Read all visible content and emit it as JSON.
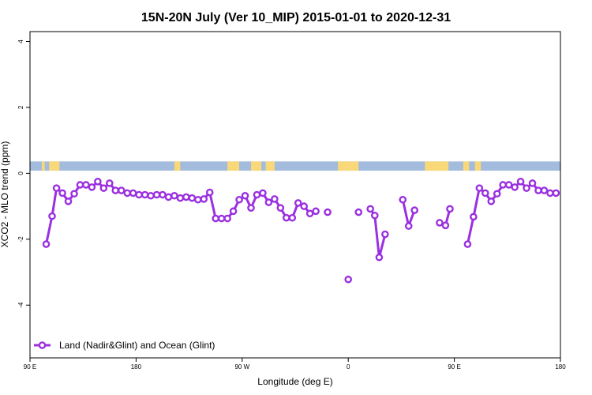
{
  "chart_data": {
    "type": "line",
    "title": "15N-20N July (Ver 10_MIP)   2015-01-01 to 2020-12-31",
    "xlabel": "Longitude (deg E)",
    "ylabel": "XCO2 - MLO trend (ppm)",
    "xlim": [
      90,
      450
    ],
    "ylim": [
      -5.6,
      4.3
    ],
    "xticks": [
      90,
      162,
      234,
      306,
      378,
      450
    ],
    "xtick_labels": [
      "90 E",
      "180",
      "90 W",
      "0",
      "90 E",
      "180"
    ],
    "yticks": [
      -4,
      -2,
      0,
      2,
      4
    ],
    "ytick_labels": [
      "-4",
      "-2",
      "0",
      "2",
      "4"
    ],
    "grid": false,
    "legend_position": "bottom-left",
    "land_mask_band": {
      "y_range": [
        0.08,
        0.36
      ],
      "ocean_color": "#a3bbdd",
      "land_color": "#f8d878",
      "land_x_spans": [
        [
          98,
          100
        ],
        [
          103,
          110
        ],
        [
          188,
          192
        ],
        [
          224,
          232
        ],
        [
          240,
          247
        ],
        [
          250,
          256
        ],
        [
          299,
          313
        ],
        [
          358,
          374
        ],
        [
          384,
          388
        ],
        [
          392,
          396
        ]
      ]
    },
    "series": [
      {
        "name": "Land (Nadir&Glint) and Ocean (Glint)",
        "color": "#9b30e0",
        "segments": [
          [
            [
              101,
              -2.15
            ],
            [
              105,
              -1.3
            ],
            [
              108,
              -0.45
            ],
            [
              112,
              -0.6
            ],
            [
              116,
              -0.85
            ],
            [
              120,
              -0.62
            ],
            [
              124,
              -0.35
            ],
            [
              128,
              -0.35
            ],
            [
              132,
              -0.42
            ],
            [
              136,
              -0.25
            ],
            [
              140,
              -0.45
            ],
            [
              144,
              -0.3
            ],
            [
              148,
              -0.52
            ],
            [
              152,
              -0.52
            ],
            [
              156,
              -0.6
            ],
            [
              160,
              -0.6
            ],
            [
              164,
              -0.65
            ],
            [
              168,
              -0.65
            ],
            [
              172,
              -0.68
            ],
            [
              176,
              -0.65
            ],
            [
              180,
              -0.65
            ],
            [
              184,
              -0.72
            ],
            [
              188,
              -0.68
            ],
            [
              192,
              -0.75
            ],
            [
              196,
              -0.72
            ],
            [
              200,
              -0.75
            ],
            [
              204,
              -0.8
            ],
            [
              208,
              -0.78
            ],
            [
              212,
              -0.58
            ],
            [
              216,
              -1.37
            ],
            [
              220,
              -1.37
            ],
            [
              224,
              -1.37
            ],
            [
              228,
              -1.15
            ],
            [
              232,
              -0.8
            ],
            [
              236,
              -0.68
            ],
            [
              240,
              -1.05
            ],
            [
              244,
              -0.65
            ],
            [
              248,
              -0.6
            ],
            [
              252,
              -0.88
            ],
            [
              256,
              -0.78
            ],
            [
              260,
              -1.05
            ],
            [
              264,
              -1.35
            ],
            [
              268,
              -1.35
            ],
            [
              272,
              -0.9
            ],
            [
              276,
              -1.0
            ],
            [
              280,
              -1.22
            ],
            [
              284,
              -1.15
            ]
          ],
          [
            [
              292,
              -1.18
            ]
          ],
          [
            [
              306,
              -3.22
            ]
          ],
          [
            [
              313,
              -1.18
            ]
          ],
          [
            [
              321,
              -1.08
            ],
            [
              324,
              -1.28
            ],
            [
              327,
              -2.55
            ],
            [
              331,
              -1.85
            ]
          ],
          [
            [
              343,
              -0.8
            ],
            [
              347,
              -1.6
            ],
            [
              351,
              -1.12
            ]
          ],
          [
            [
              368,
              -1.5
            ],
            [
              372,
              -1.58
            ],
            [
              375,
              -1.08
            ]
          ],
          [
            [
              387,
              -2.15
            ],
            [
              391,
              -1.32
            ],
            [
              395,
              -0.45
            ],
            [
              399,
              -0.6
            ],
            [
              403,
              -0.85
            ],
            [
              407,
              -0.62
            ],
            [
              411,
              -0.35
            ],
            [
              415,
              -0.35
            ],
            [
              419,
              -0.42
            ],
            [
              423,
              -0.25
            ],
            [
              427,
              -0.45
            ],
            [
              431,
              -0.3
            ],
            [
              435,
              -0.52
            ],
            [
              439,
              -0.52
            ],
            [
              443,
              -0.6
            ],
            [
              447,
              -0.6
            ]
          ]
        ]
      }
    ]
  }
}
